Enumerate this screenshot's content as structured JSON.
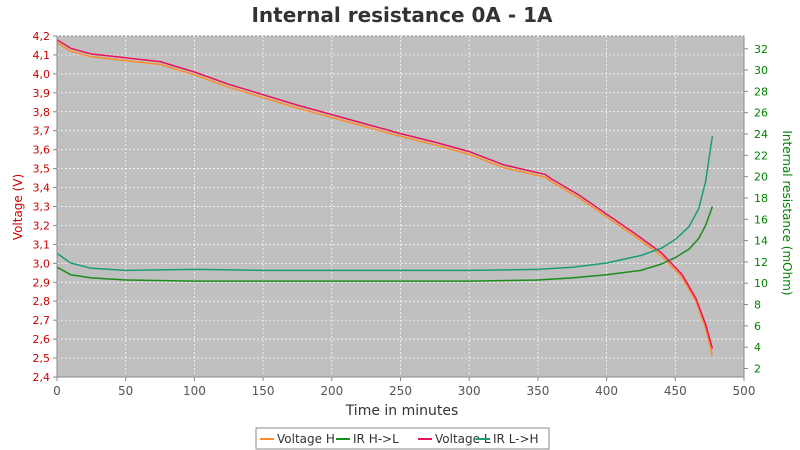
{
  "chart_data": {
    "type": "line",
    "title": "Internal resistance  0A - 1A",
    "xlabel": "Time in minutes",
    "ylabel_left": "Voltage (V)",
    "ylabel_right": "Internal resistance (mOhm)",
    "xlim": [
      0,
      500
    ],
    "ylim_left": [
      2.4,
      4.2
    ],
    "ylim_right": [
      1.2,
      33.2
    ],
    "x_ticks": [
      0,
      50,
      100,
      150,
      200,
      250,
      300,
      350,
      400,
      450,
      500
    ],
    "y_left_ticks": [
      "2,4",
      "2,5",
      "2,6",
      "2,7",
      "2,8",
      "2,9",
      "3,0",
      "3,1",
      "3,2",
      "3,3",
      "3,4",
      "3,5",
      "3,6",
      "3,7",
      "3,8",
      "3,9",
      "4,0",
      "4,1",
      "4,2"
    ],
    "y_right_ticks": [
      "2",
      "4",
      "6",
      "8",
      "10",
      "12",
      "14",
      "16",
      "18",
      "20",
      "22",
      "24",
      "26",
      "28",
      "30",
      "32"
    ],
    "grid": true,
    "background": "#c0c0c0",
    "legend_position": "bottom",
    "series": [
      {
        "name": "Voltage H",
        "axis": "left",
        "color": "#ff8c28",
        "x": [
          0,
          10,
          25,
          50,
          75,
          100,
          125,
          150,
          175,
          200,
          225,
          250,
          275,
          300,
          325,
          340,
          355,
          360,
          380,
          400,
          420,
          440,
          455,
          465,
          472,
          477
        ],
        "y": [
          4.165,
          4.12,
          4.09,
          4.07,
          4.05,
          3.995,
          3.93,
          3.875,
          3.82,
          3.77,
          3.72,
          3.67,
          3.625,
          3.575,
          3.505,
          3.48,
          3.455,
          3.43,
          3.345,
          3.245,
          3.145,
          3.04,
          2.925,
          2.8,
          2.66,
          2.51
        ]
      },
      {
        "name": "IR H->L",
        "axis": "right",
        "color": "#1c8c1c",
        "x": [
          0,
          10,
          25,
          50,
          100,
          150,
          200,
          250,
          300,
          350,
          375,
          400,
          425,
          440,
          450,
          460,
          467,
          472,
          477
        ],
        "y": [
          11.5,
          10.8,
          10.5,
          10.3,
          10.2,
          10.2,
          10.2,
          10.2,
          10.2,
          10.3,
          10.5,
          10.8,
          11.2,
          11.8,
          12.4,
          13.2,
          14.2,
          15.4,
          17.2
        ]
      },
      {
        "name": "Voltage L",
        "axis": "left",
        "color": "#e8145a",
        "x": [
          0,
          10,
          25,
          50,
          75,
          100,
          125,
          150,
          175,
          200,
          225,
          250,
          275,
          300,
          325,
          340,
          355,
          360,
          380,
          400,
          420,
          440,
          455,
          465,
          472,
          477
        ],
        "y": [
          4.18,
          4.135,
          4.105,
          4.085,
          4.065,
          4.01,
          3.945,
          3.89,
          3.835,
          3.785,
          3.735,
          3.685,
          3.64,
          3.59,
          3.52,
          3.495,
          3.47,
          3.445,
          3.36,
          3.26,
          3.16,
          3.055,
          2.94,
          2.815,
          2.68,
          2.55
        ]
      },
      {
        "name": "IR L->H",
        "axis": "right",
        "color": "#1a9c7a",
        "x": [
          0,
          10,
          25,
          50,
          100,
          150,
          200,
          250,
          300,
          350,
          375,
          400,
          425,
          440,
          450,
          460,
          467,
          472,
          477
        ],
        "y": [
          12.8,
          11.9,
          11.4,
          11.2,
          11.3,
          11.2,
          11.2,
          11.2,
          11.2,
          11.3,
          11.5,
          11.9,
          12.6,
          13.3,
          14.1,
          15.3,
          17.0,
          19.5,
          23.8
        ]
      }
    ]
  }
}
